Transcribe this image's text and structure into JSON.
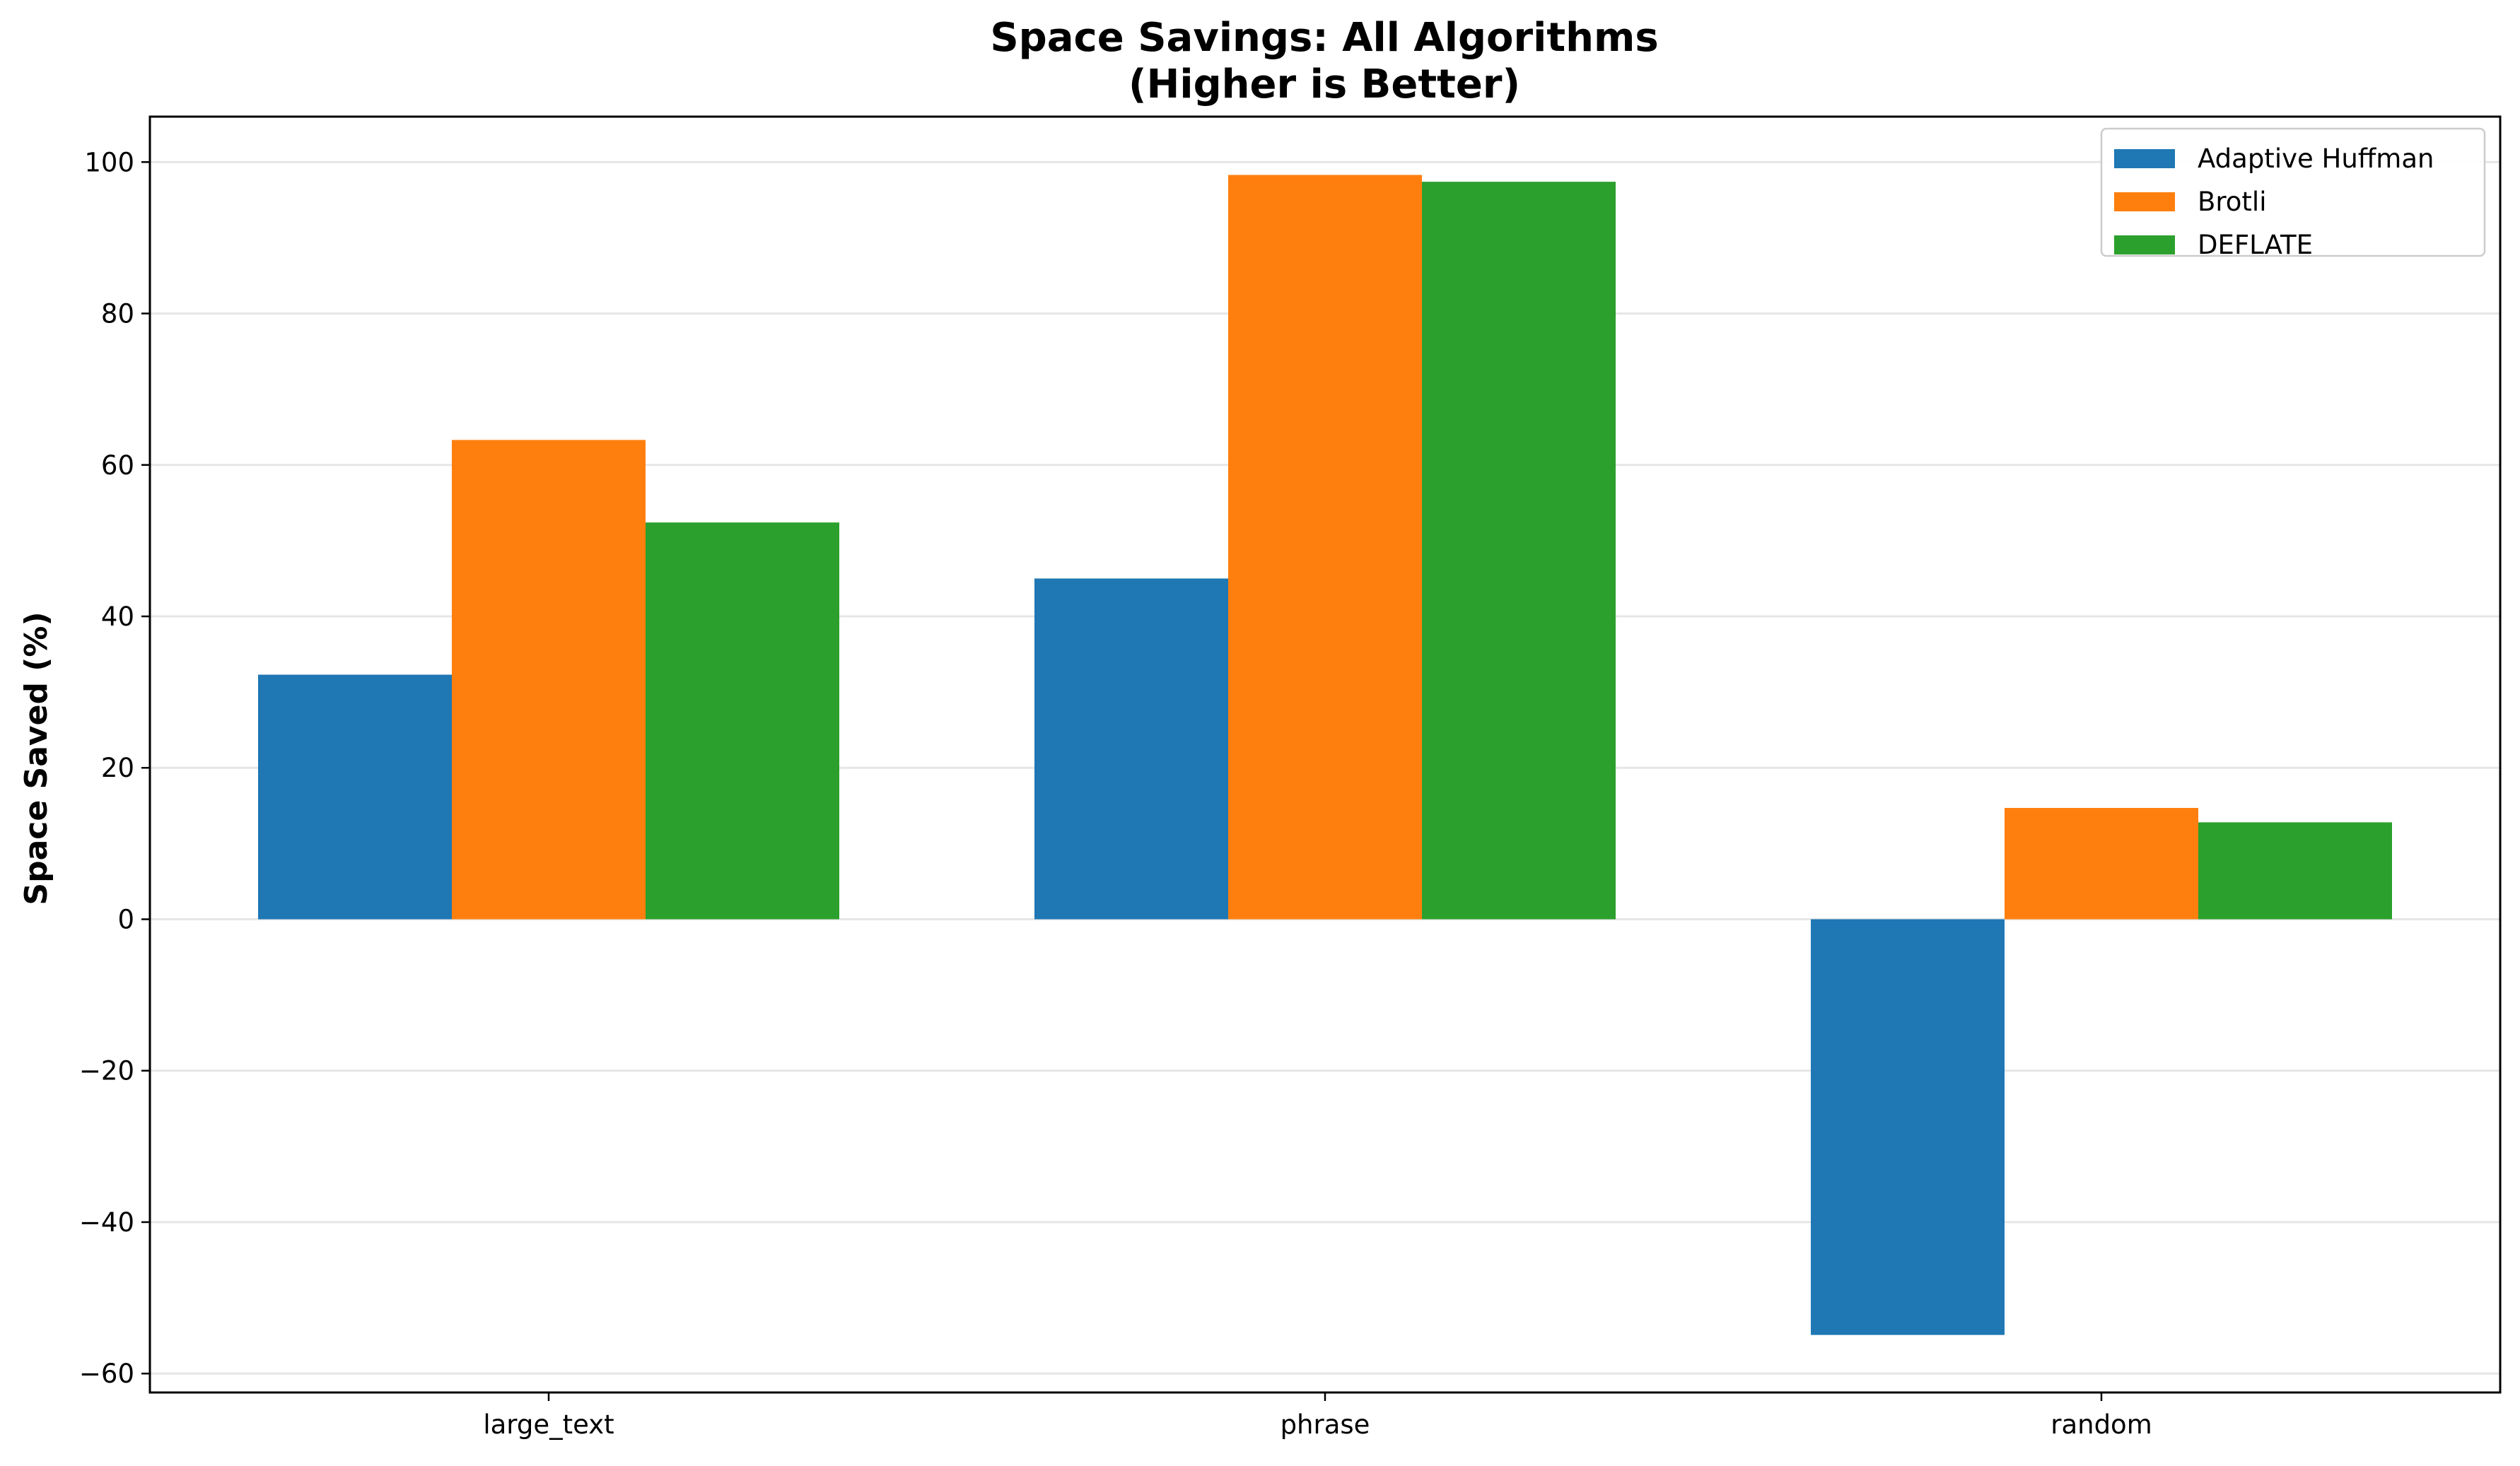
{
  "chart_data": {
    "type": "bar",
    "title": "Space Savings: All Algorithms",
    "subtitle": "(Higher is Better)",
    "xlabel": "",
    "ylabel": "Space Saved (%)",
    "categories": [
      "large_text",
      "phrase",
      "random"
    ],
    "series": [
      {
        "name": "Adaptive Huffman",
        "color": "#1f77b4",
        "values": [
          32.3,
          45.0,
          -54.9
        ]
      },
      {
        "name": "Brotli",
        "color": "#ff7f0e",
        "values": [
          63.3,
          98.3,
          14.7
        ]
      },
      {
        "name": "DEFLATE",
        "color": "#2ca02c",
        "values": [
          52.4,
          97.4,
          12.8
        ]
      }
    ],
    "ylim": [
      -62.5,
      106
    ],
    "yticks": [
      -60,
      -40,
      -20,
      0,
      20,
      40,
      60,
      80,
      100
    ],
    "grid": "horizontal",
    "legend_position": "top-right"
  }
}
